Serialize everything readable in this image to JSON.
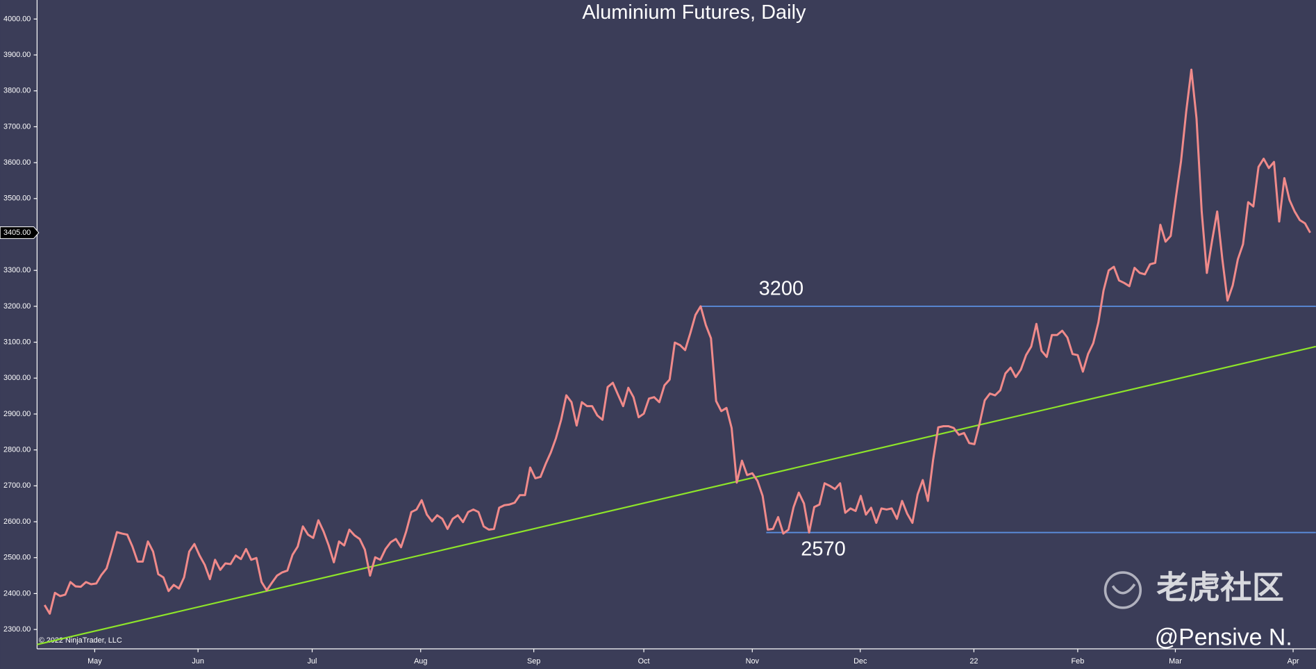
{
  "chart_data": {
    "type": "line",
    "title": "Aluminium Futures, Daily",
    "series": [
      {
        "name": "Aluminium Futures",
        "color": "#f08a8a",
        "values": [
          2368,
          2344,
          2402,
          2393,
          2397,
          2432,
          2420,
          2419,
          2432,
          2426,
          2428,
          2452,
          2470,
          2519,
          2571,
          2567,
          2564,
          2531,
          2489,
          2489,
          2545,
          2517,
          2454,
          2445,
          2407,
          2424,
          2414,
          2445,
          2517,
          2538,
          2506,
          2480,
          2440,
          2494,
          2466,
          2484,
          2482,
          2506,
          2496,
          2524,
          2494,
          2499,
          2432,
          2409,
          2430,
          2450,
          2459,
          2464,
          2508,
          2531,
          2587,
          2564,
          2555,
          2604,
          2573,
          2534,
          2487,
          2545,
          2534,
          2578,
          2562,
          2552,
          2522,
          2450,
          2501,
          2494,
          2524,
          2543,
          2552,
          2529,
          2573,
          2627,
          2634,
          2660,
          2620,
          2601,
          2618,
          2608,
          2580,
          2608,
          2618,
          2599,
          2627,
          2634,
          2627,
          2587,
          2578,
          2580,
          2639,
          2646,
          2648,
          2653,
          2674,
          2674,
          2751,
          2721,
          2725,
          2761,
          2793,
          2833,
          2884,
          2952,
          2933,
          2868,
          2933,
          2922,
          2922,
          2896,
          2884,
          2975,
          2987,
          2954,
          2922,
          2973,
          2947,
          2891,
          2901,
          2943,
          2947,
          2933,
          2980,
          2996,
          3099,
          3092,
          3078,
          3125,
          3176,
          3200,
          3148,
          3111,
          2936,
          2908,
          2917,
          2861,
          2709,
          2770,
          2730,
          2735,
          2714,
          2672,
          2578,
          2580,
          2613,
          2567,
          2578,
          2641,
          2681,
          2651,
          2570,
          2641,
          2648,
          2707,
          2700,
          2691,
          2707,
          2625,
          2637,
          2630,
          2672,
          2620,
          2639,
          2597,
          2637,
          2634,
          2637,
          2608,
          2658,
          2622,
          2597,
          2676,
          2716,
          2658,
          2772,
          2863,
          2866,
          2866,
          2861,
          2842,
          2847,
          2819,
          2816,
          2873,
          2938,
          2957,
          2952,
          2966,
          3013,
          3029,
          3003,
          3024,
          3064,
          3088,
          3151,
          3076,
          3059,
          3120,
          3120,
          3132,
          3113,
          3067,
          3064,
          3018,
          3067,
          3097,
          3155,
          3244,
          3300,
          3310,
          3272,
          3265,
          3256,
          3307,
          3293,
          3289,
          3317,
          3321,
          3427,
          3380,
          3396,
          3503,
          3604,
          3742,
          3859,
          3723,
          3464,
          3293,
          3382,
          3464,
          3331,
          3216,
          3258,
          3331,
          3373,
          3490,
          3478,
          3588,
          3611,
          3585,
          3602,
          3436,
          3557,
          3496,
          3464,
          3440,
          3431,
          3405
        ]
      }
    ],
    "xlim": [
      -1.46,
      246.1
    ],
    "xticks": [
      {
        "value": 9.7,
        "label": "May"
      },
      {
        "value": 29.7,
        "label": "Jun"
      },
      {
        "value": 51.8,
        "label": "Jul"
      },
      {
        "value": 72.8,
        "label": "Aug"
      },
      {
        "value": 94.7,
        "label": "Sep"
      },
      {
        "value": 116.0,
        "label": "Oct"
      },
      {
        "value": 137.0,
        "label": "Nov"
      },
      {
        "value": 157.9,
        "label": "Dec"
      },
      {
        "value": 179.9,
        "label": "22"
      },
      {
        "value": 200.0,
        "label": "Feb"
      },
      {
        "value": 218.9,
        "label": "Mar"
      },
      {
        "value": 241.7,
        "label": "Apr"
      }
    ],
    "ylim": [
      2246,
      4053
    ],
    "yticks": [
      {
        "value": 2300,
        "label": "2300.00"
      },
      {
        "value": 2400,
        "label": "2400.00"
      },
      {
        "value": 2500,
        "label": "2500.00"
      },
      {
        "value": 2600,
        "label": "2600.00"
      },
      {
        "value": 2700,
        "label": "2700.00"
      },
      {
        "value": 2800,
        "label": "2800.00"
      },
      {
        "value": 2900,
        "label": "2900.00"
      },
      {
        "value": 3000,
        "label": "3000.00"
      },
      {
        "value": 3100,
        "label": "3100.00"
      },
      {
        "value": 3200,
        "label": "3200.00"
      },
      {
        "value": 3300,
        "label": "3300.00"
      },
      {
        "value": 3400,
        "label": "3400.00"
      },
      {
        "value": 3500,
        "label": "3500.00"
      },
      {
        "value": 3600,
        "label": "3600.00"
      },
      {
        "value": 3700,
        "label": "3700.00"
      },
      {
        "value": 3800,
        "label": "3800.00"
      },
      {
        "value": 3900,
        "label": "3900.00"
      },
      {
        "value": 4000,
        "label": "4000.00"
      }
    ],
    "levels": [
      {
        "value": 3200,
        "label": "3200",
        "start": 127,
        "color": "#5b8fe0"
      },
      {
        "value": 2570,
        "label": "2570",
        "start": 139.7,
        "color": "#5b8fe0"
      }
    ],
    "trendline": {
      "x": [
        -1.46,
        246.1
      ],
      "values": [
        2258,
        3088
      ],
      "color": "#8ee52a"
    },
    "last_price": {
      "value": 3405,
      "label": "3405.00"
    },
    "copyright": "© 2022 NinjaTrader, LLC",
    "watermark": "老虎社区",
    "author": "@Pensive N."
  }
}
